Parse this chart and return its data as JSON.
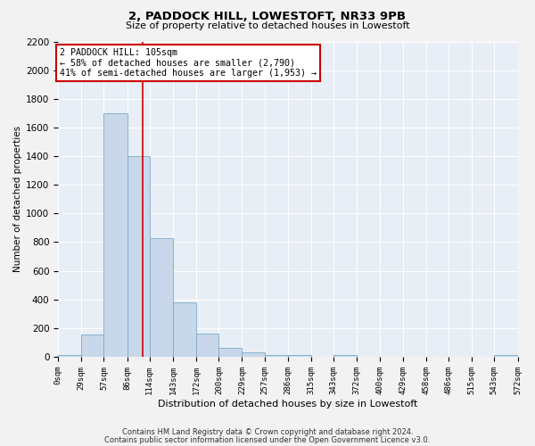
{
  "title": "2, PADDOCK HILL, LOWESTOFT, NR33 9PB",
  "subtitle": "Size of property relative to detached houses in Lowestoft",
  "xlabel": "Distribution of detached houses by size in Lowestoft",
  "ylabel": "Number of detached properties",
  "bar_color": "#c8d8ea",
  "bar_edge_color": "#7aaac8",
  "background_color": "#e8eef5",
  "grid_color": "#ffffff",
  "ylim": [
    0,
    2200
  ],
  "yticks": [
    0,
    200,
    400,
    600,
    800,
    1000,
    1200,
    1400,
    1600,
    1800,
    2000,
    2200
  ],
  "bin_edges": [
    0,
    29,
    57,
    86,
    114,
    143,
    172,
    200,
    229,
    257,
    286,
    315,
    343,
    372,
    400,
    429,
    458,
    486,
    515,
    543,
    572
  ],
  "bar_heights": [
    10,
    155,
    1700,
    1400,
    830,
    380,
    160,
    60,
    30,
    10,
    10,
    0,
    10,
    0,
    0,
    0,
    0,
    0,
    0,
    10
  ],
  "tick_labels": [
    "0sqm",
    "29sqm",
    "57sqm",
    "86sqm",
    "114sqm",
    "143sqm",
    "172sqm",
    "200sqm",
    "229sqm",
    "257sqm",
    "286sqm",
    "315sqm",
    "343sqm",
    "372sqm",
    "400sqm",
    "429sqm",
    "458sqm",
    "486sqm",
    "515sqm",
    "543sqm",
    "572sqm"
  ],
  "property_line_x": 105,
  "annot_line1": "2 PADDOCK HILL: 105sqm",
  "annot_line2": "← 58% of detached houses are smaller (2,790)",
  "annot_line3": "41% of semi-detached houses are larger (1,953) →",
  "annotation_box_color": "#cc0000",
  "footer_line1": "Contains HM Land Registry data © Crown copyright and database right 2024.",
  "footer_line2": "Contains public sector information licensed under the Open Government Licence v3.0.",
  "fig_bg_color": "#f2f2f2"
}
